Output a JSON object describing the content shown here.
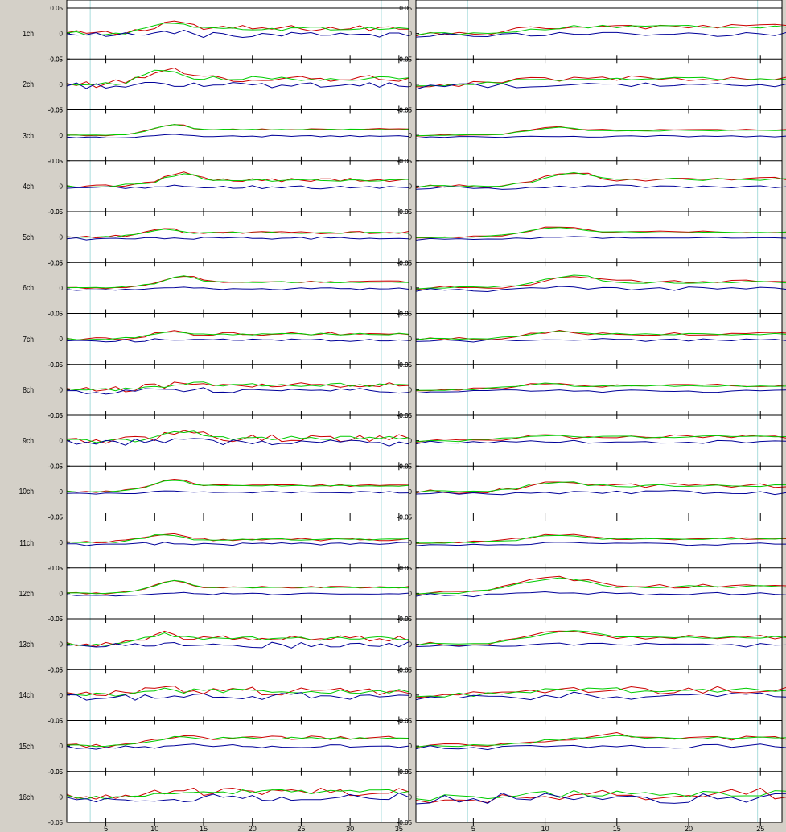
{
  "channels": [
    "1ch",
    "2ch",
    "3ch",
    "4ch",
    "5ch",
    "6ch",
    "7ch",
    "8ch",
    "9ch",
    "10ch",
    "11ch",
    "12ch",
    "13ch",
    "14ch",
    "15ch",
    "16ch"
  ],
  "y_tick_labels": [
    "0.05",
    "0",
    "-0.05"
  ],
  "colors": {
    "red": "#cc0000",
    "green": "#00cc00",
    "blue": "#000099",
    "background": "#d4d0c8",
    "plot": "#ffffff",
    "marker": "#aadddd"
  },
  "chart_data": [
    {
      "type": "line",
      "panel": "left",
      "xlim": [
        1,
        36
      ],
      "ylim": [
        -0.05,
        0.05
      ],
      "x_ticks": [
        5,
        10,
        15,
        20,
        25,
        30,
        35
      ],
      "x_tick_labels": [
        "5",
        "10",
        "15",
        "20",
        "25",
        "30",
        "35"
      ],
      "y_ticks": [
        0.05,
        0,
        -0.05
      ],
      "y_tick_labels": [
        "0.05",
        "0",
        "-0.05"
      ],
      "grid": false,
      "marker_lines_x": [
        3.4,
        33.2
      ],
      "series_colors": [
        "red",
        "green",
        "blue"
      ],
      "channels": [
        {
          "name": "1ch",
          "amp": 0.024,
          "trend": 0.01,
          "peak": 12,
          "width": 3,
          "noise": 0.012
        },
        {
          "name": "2ch",
          "amp": 0.03,
          "trend": 0.012,
          "peak": 11,
          "width": 3,
          "noise": 0.014
        },
        {
          "name": "3ch",
          "amp": 0.022,
          "trend": 0.012,
          "peak": 12,
          "width": 3,
          "noise": 0.003
        },
        {
          "name": "4ch",
          "amp": 0.025,
          "trend": 0.012,
          "peak": 13,
          "width": 3,
          "noise": 0.007
        },
        {
          "name": "5ch",
          "amp": 0.016,
          "trend": 0.009,
          "peak": 11,
          "width": 3,
          "noise": 0.005
        },
        {
          "name": "6ch",
          "amp": 0.024,
          "trend": 0.012,
          "peak": 13,
          "width": 3,
          "noise": 0.004
        },
        {
          "name": "7ch",
          "amp": 0.016,
          "trend": 0.01,
          "peak": 12,
          "width": 3,
          "noise": 0.006
        },
        {
          "name": "8ch",
          "amp": 0.014,
          "trend": 0.01,
          "peak": 14,
          "width": 3,
          "noise": 0.012
        },
        {
          "name": "9ch",
          "amp": 0.018,
          "trend": 0.005,
          "peak": 13,
          "width": 3,
          "noise": 0.014
        },
        {
          "name": "10ch",
          "amp": 0.024,
          "trend": 0.012,
          "peak": 12,
          "width": 3,
          "noise": 0.004
        },
        {
          "name": "11ch",
          "amp": 0.016,
          "trend": 0.006,
          "peak": 11,
          "width": 3,
          "noise": 0.006
        },
        {
          "name": "12ch",
          "amp": 0.026,
          "trend": 0.012,
          "peak": 12,
          "width": 3,
          "noise": 0.004
        },
        {
          "name": "13ch",
          "amp": 0.02,
          "trend": 0.012,
          "peak": 11,
          "width": 3,
          "noise": 0.012
        },
        {
          "name": "14ch",
          "amp": 0.012,
          "trend": 0.008,
          "peak": 11,
          "width": 3,
          "noise": 0.016
        },
        {
          "name": "15ch",
          "amp": 0.02,
          "trend": 0.016,
          "peak": 13,
          "width": 3,
          "noise": 0.008
        },
        {
          "name": "16ch",
          "amp": 0.008,
          "trend": 0.01,
          "peak": 12,
          "width": 3,
          "noise": 0.016
        }
      ]
    },
    {
      "type": "line",
      "panel": "right",
      "xlim": [
        1,
        26.5
      ],
      "ylim": [
        -0.05,
        0.05
      ],
      "x_ticks": [
        5,
        10,
        15,
        20,
        25
      ],
      "x_tick_labels": [
        "5",
        "10",
        "15",
        "20",
        "25"
      ],
      "y_ticks": [
        0.05,
        0,
        -0.05
      ],
      "y_tick_labels": [
        "0.05",
        "0",
        "-0.05"
      ],
      "grid": false,
      "marker_lines_x": [
        4.6,
        24.8
      ],
      "series_colors": [
        "red",
        "green",
        "blue"
      ],
      "channels": [
        {
          "name": "1ch",
          "amp": 0.01,
          "trend": 0.014,
          "peak": 10,
          "width": 3,
          "noise": 0.01
        },
        {
          "name": "2ch",
          "amp": 0.012,
          "trend": 0.012,
          "peak": 10,
          "width": 3,
          "noise": 0.01
        },
        {
          "name": "3ch",
          "amp": 0.016,
          "trend": 0.01,
          "peak": 11,
          "width": 3,
          "noise": 0.004
        },
        {
          "name": "4ch",
          "amp": 0.026,
          "trend": 0.014,
          "peak": 12,
          "width": 3,
          "noise": 0.008
        },
        {
          "name": "5ch",
          "amp": 0.02,
          "trend": 0.01,
          "peak": 11,
          "width": 3,
          "noise": 0.004
        },
        {
          "name": "6ch",
          "amp": 0.026,
          "trend": 0.012,
          "peak": 12,
          "width": 3,
          "noise": 0.008
        },
        {
          "name": "7ch",
          "amp": 0.014,
          "trend": 0.01,
          "peak": 11,
          "width": 3,
          "noise": 0.006
        },
        {
          "name": "8ch",
          "amp": 0.012,
          "trend": 0.008,
          "peak": 10,
          "width": 3,
          "noise": 0.006
        },
        {
          "name": "9ch",
          "amp": 0.012,
          "trend": 0.008,
          "peak": 10,
          "width": 3,
          "noise": 0.008
        },
        {
          "name": "10ch",
          "amp": 0.02,
          "trend": 0.012,
          "peak": 11,
          "width": 3,
          "noise": 0.008
        },
        {
          "name": "11ch",
          "amp": 0.016,
          "trend": 0.008,
          "peak": 11,
          "width": 3,
          "noise": 0.006
        },
        {
          "name": "12ch",
          "amp": 0.03,
          "trend": 0.014,
          "peak": 11,
          "width": 4,
          "noise": 0.008
        },
        {
          "name": "13ch",
          "amp": 0.026,
          "trend": 0.014,
          "peak": 12,
          "width": 4,
          "noise": 0.008
        },
        {
          "name": "14ch",
          "amp": 0.012,
          "trend": 0.01,
          "peak": 11,
          "width": 3,
          "noise": 0.016
        },
        {
          "name": "15ch",
          "amp": 0.022,
          "trend": 0.016,
          "peak": 15,
          "width": 5,
          "noise": 0.01
        },
        {
          "name": "16ch",
          "amp": 0.006,
          "trend": 0.006,
          "peak": 12,
          "width": 3,
          "noise": 0.024
        }
      ]
    }
  ]
}
